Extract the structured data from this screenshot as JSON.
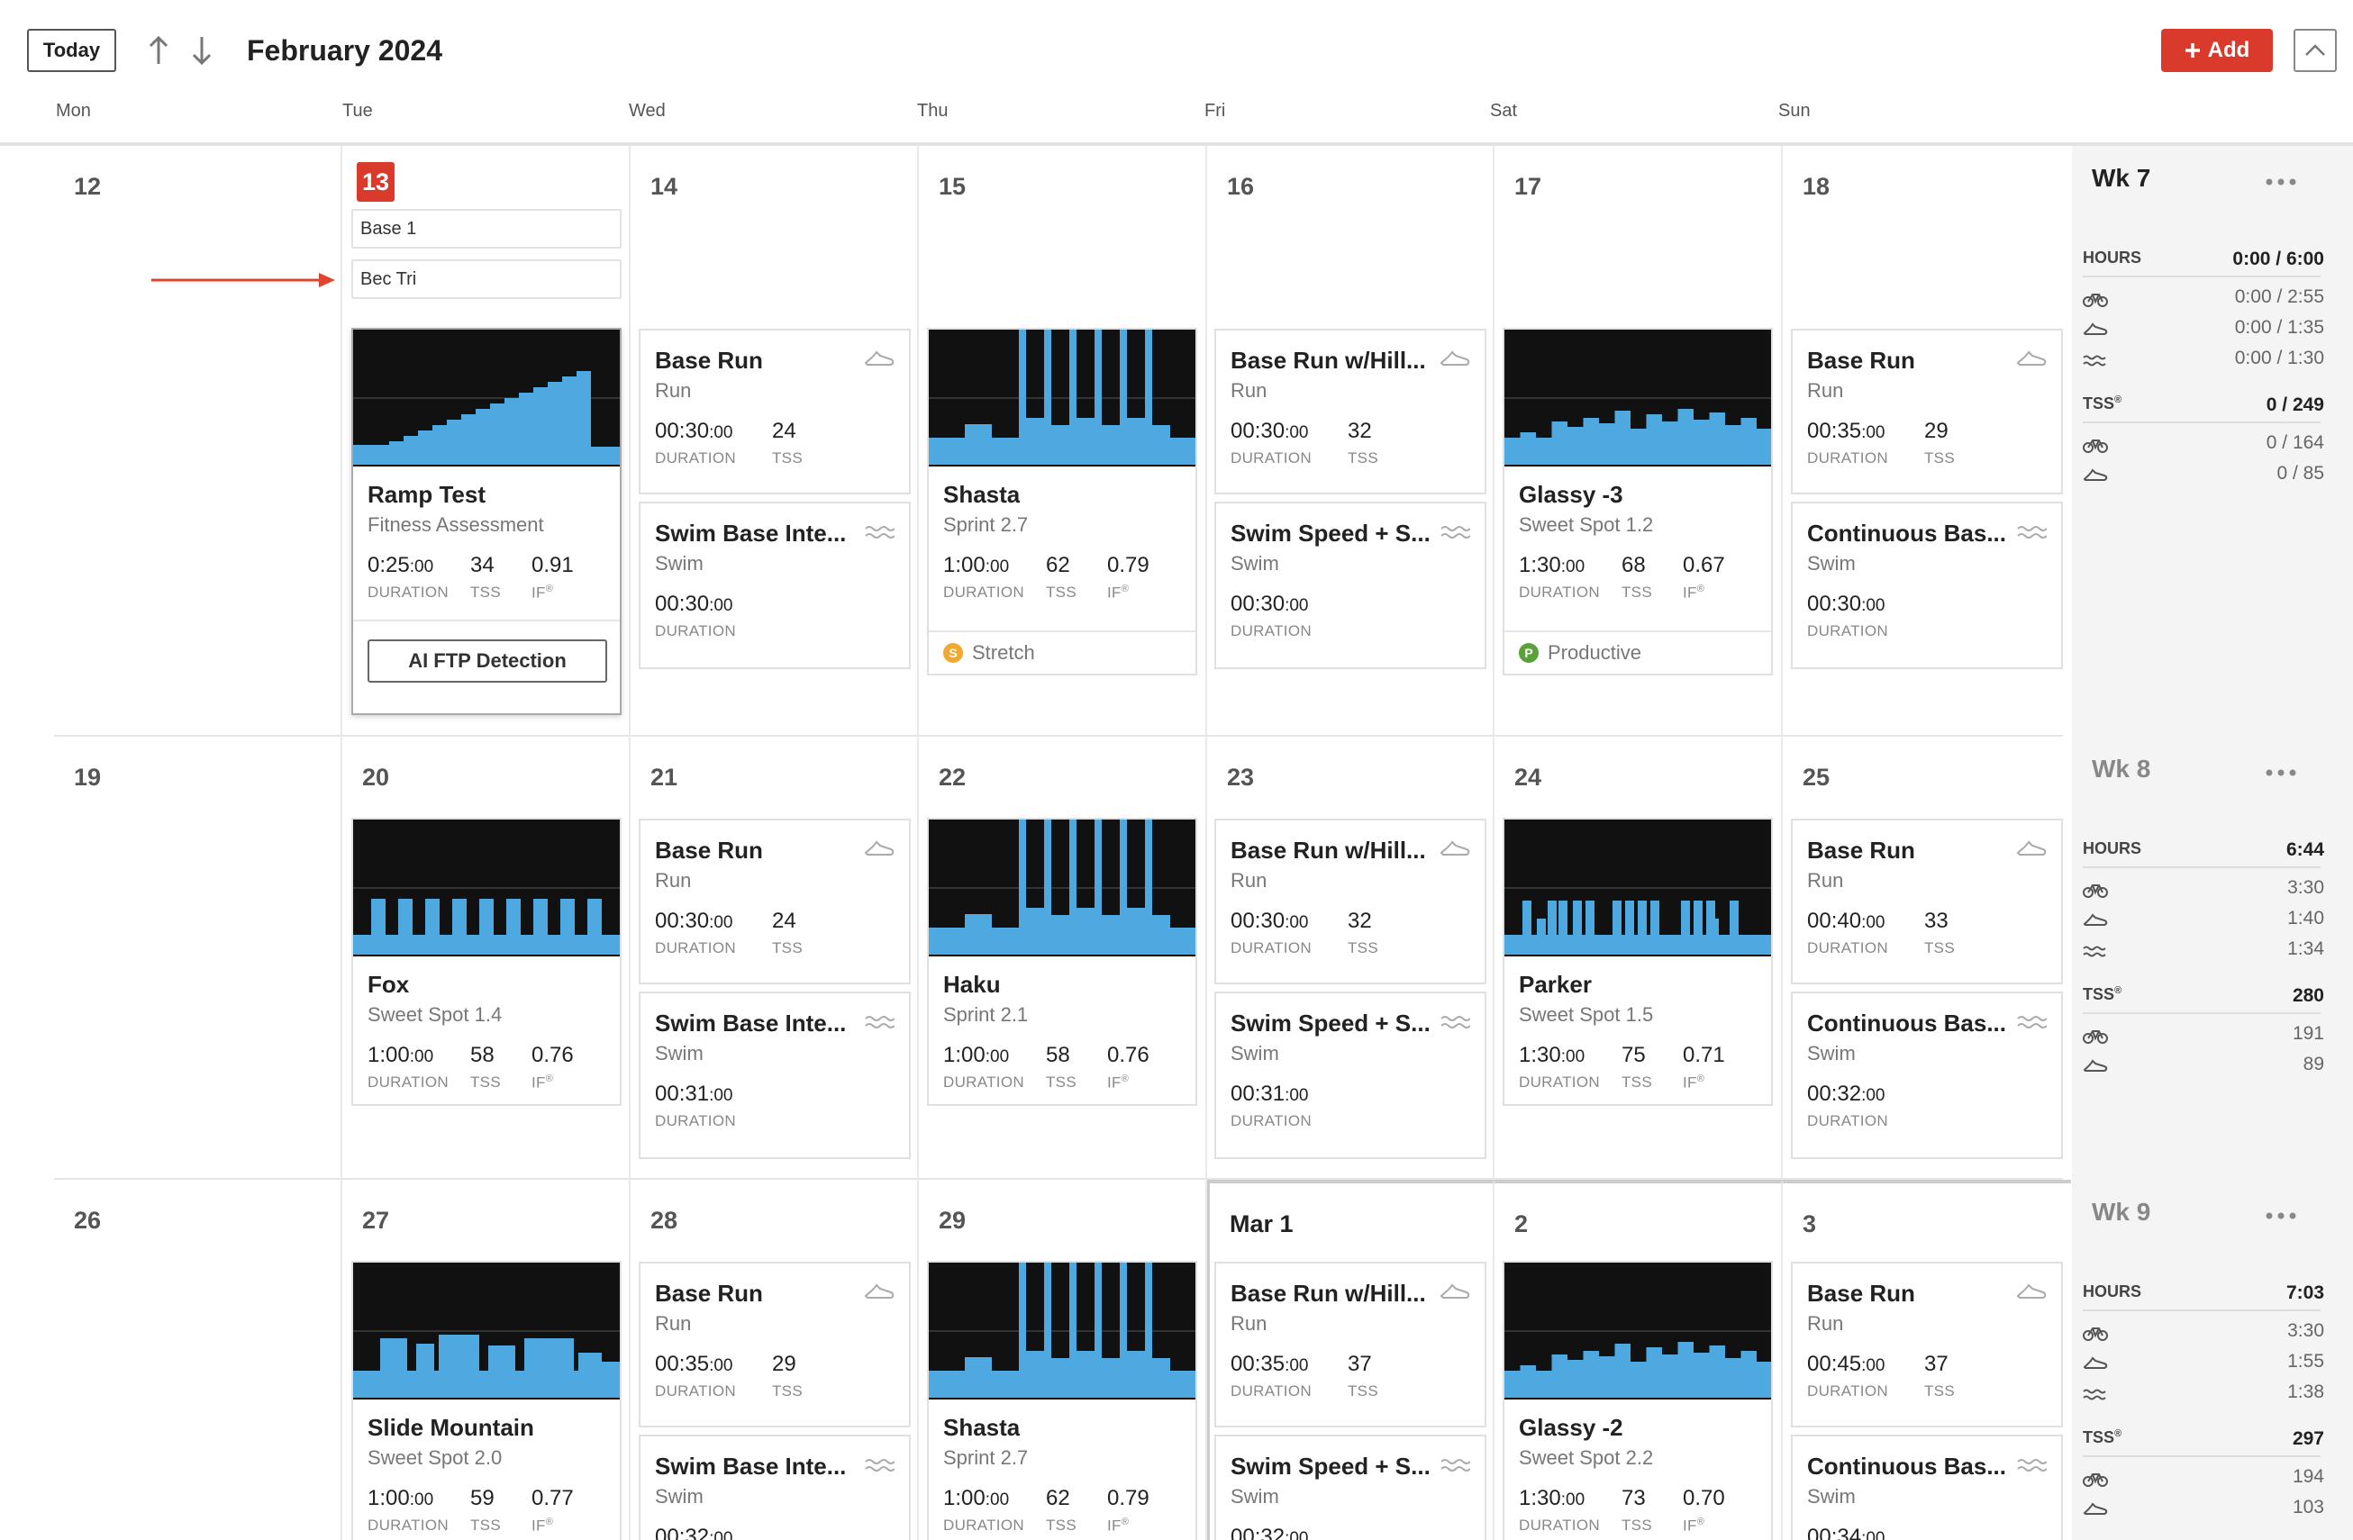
{
  "toolbar": {
    "today_label": "Today",
    "month_title": "February 2024",
    "add_label": "Add"
  },
  "day_headers": [
    "Mon",
    "Tue",
    "Wed",
    "Thu",
    "Fri",
    "Sat",
    "Sun"
  ],
  "colors": {
    "accent": "#d93a2b",
    "profile_bg": "#111111",
    "profile_fill": "#4ea9e1"
  },
  "tags": {
    "base": "Base 1",
    "event": "Bec Tri"
  },
  "ftp_button": "AI FTP Detection",
  "labels": {
    "duration": "DURATION",
    "tss": "TSS",
    "if": "IF"
  },
  "weeks": [
    {
      "days": [
        "12",
        "13",
        "14",
        "15",
        "16",
        "17",
        "18"
      ],
      "summary": {
        "week": "Wk 7",
        "hours_label": "HOURS",
        "hours": "0:00 / 6:00",
        "bike": "0:00 / 2:55",
        "run": "0:00 / 1:35",
        "swim": "0:00 / 1:30",
        "tss_label": "TSS",
        "tss": "0 / 249",
        "tss_bike": "0 / 164",
        "tss_run": "0 / 85"
      },
      "cards": {
        "tue": {
          "title": "Ramp Test",
          "sub": "Fitness Assessment",
          "dur": "0:25",
          "durs": ":00",
          "tss": "34",
          "if": "0.91"
        },
        "wed_run": {
          "title": "Base Run",
          "sub": "Run",
          "dur": "00:30",
          "durs": ":00",
          "tss": "24"
        },
        "wed_swim": {
          "title": "Swim Base Inte...",
          "sub": "Swim",
          "dur": "00:30",
          "durs": ":00"
        },
        "thu": {
          "title": "Shasta",
          "sub": "Sprint 2.7",
          "dur": "1:00",
          "durs": ":00",
          "tss": "62",
          "if": "0.79",
          "zone": "Stretch",
          "zone_letter": "S",
          "zone_color": "#f0a830"
        },
        "fri_run": {
          "title": "Base Run w/Hill...",
          "sub": "Run",
          "dur": "00:30",
          "durs": ":00",
          "tss": "32"
        },
        "fri_swim": {
          "title": "Swim Speed + S...",
          "sub": "Swim",
          "dur": "00:30",
          "durs": ":00"
        },
        "sat": {
          "title": "Glassy -3",
          "sub": "Sweet Spot 1.2",
          "dur": "1:30",
          "durs": ":00",
          "tss": "68",
          "if": "0.67",
          "zone": "Productive",
          "zone_letter": "P",
          "zone_color": "#5aa13c"
        },
        "sun_run": {
          "title": "Base Run",
          "sub": "Run",
          "dur": "00:35",
          "durs": ":00",
          "tss": "29"
        },
        "sun_swim": {
          "title": "Continuous Bas...",
          "sub": "Swim",
          "dur": "00:30",
          "durs": ":00"
        }
      }
    },
    {
      "days": [
        "19",
        "20",
        "21",
        "22",
        "23",
        "24",
        "25"
      ],
      "summary": {
        "week": "Wk 8",
        "hours_label": "HOURS",
        "hours": "6:44",
        "bike": "3:30",
        "run": "1:40",
        "swim": "1:34",
        "tss_label": "TSS",
        "tss": "280",
        "tss_bike": "191",
        "tss_run": "89"
      },
      "cards": {
        "tue": {
          "title": "Fox",
          "sub": "Sweet Spot 1.4",
          "dur": "1:00",
          "durs": ":00",
          "tss": "58",
          "if": "0.76"
        },
        "wed_run": {
          "title": "Base Run",
          "sub": "Run",
          "dur": "00:30",
          "durs": ":00",
          "tss": "24"
        },
        "wed_swim": {
          "title": "Swim Base Inte...",
          "sub": "Swim",
          "dur": "00:31",
          "durs": ":00"
        },
        "thu": {
          "title": "Haku",
          "sub": "Sprint 2.1",
          "dur": "1:00",
          "durs": ":00",
          "tss": "58",
          "if": "0.76"
        },
        "fri_run": {
          "title": "Base Run w/Hill...",
          "sub": "Run",
          "dur": "00:30",
          "durs": ":00",
          "tss": "32"
        },
        "fri_swim": {
          "title": "Swim Speed + S...",
          "sub": "Swim",
          "dur": "00:31",
          "durs": ":00"
        },
        "sat": {
          "title": "Parker",
          "sub": "Sweet Spot 1.5",
          "dur": "1:30",
          "durs": ":00",
          "tss": "75",
          "if": "0.71"
        },
        "sun_run": {
          "title": "Base Run",
          "sub": "Run",
          "dur": "00:40",
          "durs": ":00",
          "tss": "33"
        },
        "sun_swim": {
          "title": "Continuous Bas...",
          "sub": "Swim",
          "dur": "00:32",
          "durs": ":00"
        }
      }
    },
    {
      "days": [
        "26",
        "27",
        "28",
        "29",
        "Mar 1",
        "2",
        "3"
      ],
      "summary": {
        "week": "Wk 9",
        "hours_label": "HOURS",
        "hours": "7:03",
        "bike": "3:30",
        "run": "1:55",
        "swim": "1:38",
        "tss_label": "TSS",
        "tss": "297",
        "tss_bike": "194",
        "tss_run": "103"
      },
      "cards": {
        "tue": {
          "title": "Slide Mountain",
          "sub": "Sweet Spot 2.0",
          "dur": "1:00",
          "durs": ":00",
          "tss": "59",
          "if": "0.77"
        },
        "wed_run": {
          "title": "Base Run",
          "sub": "Run",
          "dur": "00:35",
          "durs": ":00",
          "tss": "29"
        },
        "wed_swim": {
          "title": "Swim Base Inte...",
          "sub": "Swim",
          "dur": "00:32",
          "durs": ":00"
        },
        "thu": {
          "title": "Shasta",
          "sub": "Sprint 2.7",
          "dur": "1:00",
          "durs": ":00",
          "tss": "62",
          "if": "0.79"
        },
        "fri_run": {
          "title": "Base Run w/Hill...",
          "sub": "Run",
          "dur": "00:35",
          "durs": ":00",
          "tss": "37"
        },
        "fri_swim": {
          "title": "Swim Speed + S...",
          "sub": "Swim",
          "dur": "00:32",
          "durs": ":00"
        },
        "sat": {
          "title": "Glassy -2",
          "sub": "Sweet Spot 2.2",
          "dur": "1:30",
          "durs": ":00",
          "tss": "73",
          "if": "0.70"
        },
        "sun_run": {
          "title": "Base Run",
          "sub": "Run",
          "dur": "00:45",
          "durs": ":00",
          "tss": "37"
        },
        "sun_swim": {
          "title": "Continuous Bas...",
          "sub": "Swim",
          "dur": "00:34",
          "durs": ":00"
        }
      }
    }
  ]
}
